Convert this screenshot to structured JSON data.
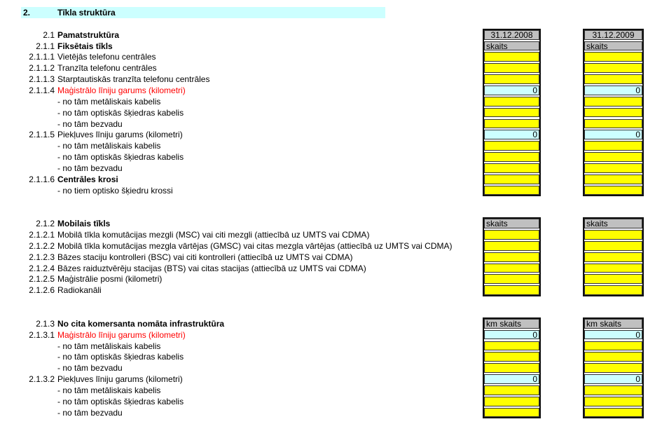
{
  "title": {
    "number": "2.",
    "label": "Tīkla struktūra"
  },
  "colors": {
    "title_band": "#ccffff",
    "header": "#c0c0c0",
    "input": "#ffff00",
    "sum": "#ccffff",
    "red_text": "#ff0000"
  },
  "columns": [
    "31.12.2008",
    "31.12.2009"
  ],
  "rows": [
    {
      "num": "",
      "label": "",
      "cell": "none"
    },
    {
      "num": "",
      "label": "",
      "cell": "none"
    },
    {
      "num": "2.1",
      "label": "Pamatstruktūra",
      "bold": true,
      "cell": "date",
      "values": [
        "31.12.2008",
        "31.12.2009"
      ]
    },
    {
      "num": "2.1.1",
      "label": "Fiksētais tīkls",
      "bold": true,
      "cell": "unit",
      "values": [
        "skaits",
        "skaits"
      ]
    },
    {
      "num": "2.1.1.1",
      "label": "Vietējās telefonu centrāles",
      "cell": "input"
    },
    {
      "num": "2.1.1.2",
      "label": "Tranzīta telefonu centrāles",
      "cell": "input"
    },
    {
      "num": "2.1.1.3",
      "label": "Starptautiskās tranzīta telefonu centrāles",
      "cell": "input"
    },
    {
      "num": "2.1.1.4",
      "label": "Maģistrālo līniju garums (kilometri)",
      "red": true,
      "cell": "sum",
      "values": [
        "0",
        "0"
      ]
    },
    {
      "num": "",
      "label": "- no tām metāliskais kabelis",
      "cell": "input"
    },
    {
      "num": "",
      "label": "- no tām optiskās šķiedras kabelis",
      "cell": "input"
    },
    {
      "num": "",
      "label": "- no tām bezvadu",
      "cell": "input"
    },
    {
      "num": "2.1.1.5",
      "label": "Piekļuves līniju garums (kilometri)",
      "cell": "sum",
      "values": [
        "0",
        "0"
      ]
    },
    {
      "num": "",
      "label": "- no tām metāliskais kabelis",
      "cell": "input"
    },
    {
      "num": "",
      "label": "- no tām optiskās šķiedras kabelis",
      "cell": "input"
    },
    {
      "num": "",
      "label": "- no tām bezvadu",
      "cell": "input"
    },
    {
      "num": "2.1.1.6",
      "label": "Centrāles krosi",
      "bold": true,
      "cell": "input"
    },
    {
      "num": "",
      "label": "- no tiem optisko šķiedru krossi",
      "cell": "input"
    },
    {
      "num": "",
      "label": "",
      "cell": "none"
    },
    {
      "num": "",
      "label": "",
      "cell": "none"
    },
    {
      "num": "2.1.2",
      "label": "Mobilais tīkls",
      "bold": true,
      "cell": "unit",
      "values": [
        "skaits",
        "skaits"
      ]
    },
    {
      "num": "2.1.2.1",
      "label": "Mobilā tīkla komutācijas mezgli (MSC) vai citi mezgli (attiecībā uz UMTS vai CDMA)",
      "cell": "input"
    },
    {
      "num": "2.1.2.2",
      "label": "Mobilā tīkla komutācijas mezgla vārtējas (GMSC) vai citas mezgla vārtējas (attiecībā uz UMTS vai CDMA)",
      "cell": "input"
    },
    {
      "num": "2.1.2.3",
      "label": "Bāzes staciju kontrolleri (BSC) vai citi kontrolleri (attiecībā uz UMTS vai CDMA)",
      "cell": "input"
    },
    {
      "num": "2.1.2.4",
      "label": "Bāzes raiduztvērēju stacijas (BTS) vai citas stacijas (attiecībā uz UMTS vai CDMA)",
      "cell": "input"
    },
    {
      "num": "2.1.2.5",
      "label": "Maģistrālie posmi (kilometri)",
      "cell": "input"
    },
    {
      "num": "2.1.2.6",
      "label": "Radiokanāli",
      "cell": "input"
    },
    {
      "num": "",
      "label": "",
      "cell": "none"
    },
    {
      "num": "",
      "label": "",
      "cell": "none"
    },
    {
      "num": "2.1.3",
      "label": "No cita komersanta nomāta infrastruktūra",
      "bold": true,
      "cell": "unit",
      "values": [
        "km skaits",
        "km skaits"
      ]
    },
    {
      "num": "2.1.3.1",
      "label": "Maģistrālo līniju garums (kilometri)",
      "red": true,
      "cell": "sum",
      "values": [
        "0",
        "0"
      ]
    },
    {
      "num": "",
      "label": "- no tām metāliskais kabelis",
      "cell": "input"
    },
    {
      "num": "",
      "label": "- no tām optiskās šķiedras kabelis",
      "cell": "input"
    },
    {
      "num": "",
      "label": "- no tām bezvadu",
      "cell": "input"
    },
    {
      "num": "2.1.3.2",
      "label": "Piekļuves līniju garums (kilometri)",
      "cell": "sum",
      "values": [
        "0",
        "0"
      ]
    },
    {
      "num": "",
      "label": "- no tām metāliskais kabelis",
      "cell": "input"
    },
    {
      "num": "",
      "label": "- no tām optiskās šķiedras kabelis",
      "cell": "input"
    },
    {
      "num": "",
      "label": "- no tām bezvadu",
      "cell": "input"
    }
  ]
}
